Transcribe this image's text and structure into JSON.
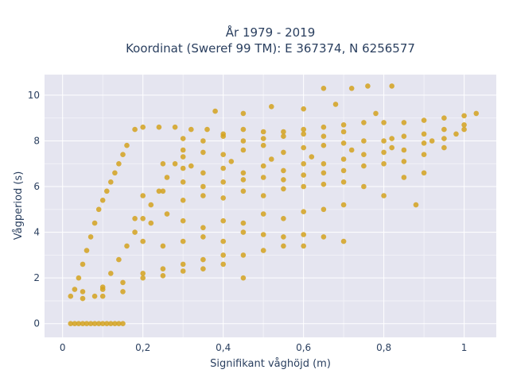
{
  "chart_data": {
    "type": "scatter",
    "title_line1": "År 1979 - 2019",
    "title_line2": "Koordinat (Sweref 99 TM): E 367374, N 6256577",
    "xlabel": "Signifikant våghöjd (m)",
    "ylabel": "Vågperiod (s)",
    "xlim": [
      -0.045,
      1.08
    ],
    "ylim": [
      -0.6,
      10.9
    ],
    "x_ticks": [
      0,
      0.2,
      0.4,
      0.6,
      0.8,
      1
    ],
    "x_tick_labels": [
      "0",
      "0,2",
      "0,4",
      "0,6",
      "0,8",
      "1"
    ],
    "y_ticks": [
      0,
      2,
      4,
      6,
      8,
      10
    ],
    "y_tick_labels": [
      "0",
      "2",
      "4",
      "6",
      "8",
      "10"
    ],
    "grid": true,
    "legend": "none",
    "marker_color": "#D4A21F",
    "background_color": "#E5E5F0",
    "points": [
      [
        0.02,
        0
      ],
      [
        0.03,
        0
      ],
      [
        0.04,
        0
      ],
      [
        0.05,
        0
      ],
      [
        0.06,
        0
      ],
      [
        0.07,
        0
      ],
      [
        0.08,
        0
      ],
      [
        0.09,
        0
      ],
      [
        0.1,
        0
      ],
      [
        0.11,
        0
      ],
      [
        0.12,
        0
      ],
      [
        0.13,
        0
      ],
      [
        0.14,
        0
      ],
      [
        0.15,
        0
      ],
      [
        0.02,
        1.2
      ],
      [
        0.03,
        1.5
      ],
      [
        0.04,
        2.0
      ],
      [
        0.05,
        2.6
      ],
      [
        0.06,
        3.2
      ],
      [
        0.07,
        3.8
      ],
      [
        0.08,
        4.4
      ],
      [
        0.09,
        5.0
      ],
      [
        0.1,
        5.4
      ],
      [
        0.11,
        5.8
      ],
      [
        0.12,
        6.2
      ],
      [
        0.13,
        6.6
      ],
      [
        0.14,
        7.0
      ],
      [
        0.15,
        7.4
      ],
      [
        0.16,
        7.8
      ],
      [
        0.05,
        1.1
      ],
      [
        0.08,
        1.2
      ],
      [
        0.1,
        1.5
      ],
      [
        0.12,
        2.2
      ],
      [
        0.14,
        2.8
      ],
      [
        0.16,
        3.4
      ],
      [
        0.18,
        4.0
      ],
      [
        0.2,
        4.6
      ],
      [
        0.22,
        5.2
      ],
      [
        0.24,
        5.8
      ],
      [
        0.26,
        6.4
      ],
      [
        0.28,
        7.0
      ],
      [
        0.3,
        7.6
      ],
      [
        0.18,
        8.5
      ],
      [
        0.2,
        8.6
      ],
      [
        0.24,
        8.6
      ],
      [
        0.28,
        8.6
      ],
      [
        0.32,
        8.5
      ],
      [
        0.36,
        8.5
      ],
      [
        0.4,
        8.3
      ],
      [
        0.45,
        8.5
      ],
      [
        0.5,
        8.4
      ],
      [
        0.55,
        8.4
      ],
      [
        0.6,
        8.5
      ],
      [
        0.65,
        8.6
      ],
      [
        0.7,
        8.7
      ],
      [
        0.75,
        8.8
      ],
      [
        0.8,
        8.8
      ],
      [
        0.85,
        8.8
      ],
      [
        0.9,
        8.9
      ],
      [
        0.95,
        9.0
      ],
      [
        1.0,
        9.1
      ],
      [
        1.03,
        9.2
      ],
      [
        0.38,
        9.3
      ],
      [
        0.45,
        9.2
      ],
      [
        0.52,
        9.5
      ],
      [
        0.6,
        9.4
      ],
      [
        0.65,
        10.3
      ],
      [
        0.72,
        10.3
      ],
      [
        0.76,
        10.4
      ],
      [
        0.82,
        10.4
      ],
      [
        0.68,
        9.6
      ],
      [
        0.78,
        9.2
      ],
      [
        0.25,
        7.0
      ],
      [
        0.3,
        6.8
      ],
      [
        0.35,
        6.6
      ],
      [
        0.4,
        6.8
      ],
      [
        0.45,
        6.6
      ],
      [
        0.5,
        6.9
      ],
      [
        0.55,
        6.7
      ],
      [
        0.6,
        7.0
      ],
      [
        0.65,
        7.0
      ],
      [
        0.7,
        7.2
      ],
      [
        0.75,
        7.4
      ],
      [
        0.8,
        7.5
      ],
      [
        0.85,
        7.6
      ],
      [
        0.9,
        7.9
      ],
      [
        0.95,
        8.1
      ],
      [
        1.0,
        8.5
      ],
      [
        0.2,
        5.6
      ],
      [
        0.25,
        5.8
      ],
      [
        0.3,
        5.4
      ],
      [
        0.35,
        5.6
      ],
      [
        0.4,
        5.5
      ],
      [
        0.45,
        5.8
      ],
      [
        0.5,
        5.6
      ],
      [
        0.55,
        5.9
      ],
      [
        0.6,
        6.0
      ],
      [
        0.65,
        6.1
      ],
      [
        0.7,
        6.2
      ],
      [
        0.75,
        6.0
      ],
      [
        0.8,
        5.6
      ],
      [
        0.85,
        6.4
      ],
      [
        0.88,
        5.2
      ],
      [
        0.9,
        6.6
      ],
      [
        0.18,
        4.6
      ],
      [
        0.22,
        4.4
      ],
      [
        0.26,
        4.8
      ],
      [
        0.3,
        4.5
      ],
      [
        0.35,
        4.2
      ],
      [
        0.4,
        4.5
      ],
      [
        0.45,
        4.4
      ],
      [
        0.5,
        4.8
      ],
      [
        0.55,
        4.6
      ],
      [
        0.6,
        4.9
      ],
      [
        0.65,
        5.0
      ],
      [
        0.7,
        5.2
      ],
      [
        0.2,
        3.6
      ],
      [
        0.25,
        3.4
      ],
      [
        0.3,
        3.6
      ],
      [
        0.35,
        3.8
      ],
      [
        0.4,
        3.6
      ],
      [
        0.45,
        4.0
      ],
      [
        0.5,
        3.9
      ],
      [
        0.55,
        3.8
      ],
      [
        0.6,
        3.9
      ],
      [
        0.65,
        3.8
      ],
      [
        0.7,
        3.6
      ],
      [
        0.2,
        2.2
      ],
      [
        0.25,
        2.4
      ],
      [
        0.3,
        2.6
      ],
      [
        0.35,
        2.8
      ],
      [
        0.4,
        3.0
      ],
      [
        0.45,
        3.0
      ],
      [
        0.5,
        3.2
      ],
      [
        0.55,
        3.4
      ],
      [
        0.6,
        3.4
      ],
      [
        0.45,
        2.0
      ],
      [
        0.1,
        1.6
      ],
      [
        0.15,
        1.8
      ],
      [
        0.2,
        2.0
      ],
      [
        0.25,
        2.1
      ],
      [
        0.3,
        2.3
      ],
      [
        0.35,
        2.4
      ],
      [
        0.4,
        2.6
      ],
      [
        0.05,
        1.4
      ],
      [
        0.1,
        1.2
      ],
      [
        0.15,
        1.4
      ],
      [
        0.3,
        6.2
      ],
      [
        0.35,
        6.0
      ],
      [
        0.4,
        6.2
      ],
      [
        0.45,
        6.3
      ],
      [
        0.5,
        6.4
      ],
      [
        0.55,
        6.3
      ],
      [
        0.6,
        6.5
      ],
      [
        0.65,
        6.6
      ],
      [
        0.7,
        6.7
      ],
      [
        0.75,
        6.9
      ],
      [
        0.8,
        7.0
      ],
      [
        0.85,
        7.1
      ],
      [
        0.9,
        7.4
      ],
      [
        0.95,
        7.7
      ],
      [
        0.3,
        7.3
      ],
      [
        0.35,
        7.5
      ],
      [
        0.4,
        7.4
      ],
      [
        0.45,
        7.6
      ],
      [
        0.5,
        7.8
      ],
      [
        0.55,
        7.5
      ],
      [
        0.6,
        7.7
      ],
      [
        0.65,
        7.8
      ],
      [
        0.7,
        7.9
      ],
      [
        0.75,
        8.0
      ],
      [
        0.8,
        8.0
      ],
      [
        0.85,
        8.2
      ],
      [
        0.9,
        8.3
      ],
      [
        0.95,
        8.5
      ],
      [
        1.0,
        8.7
      ],
      [
        0.3,
        8.1
      ],
      [
        0.35,
        8.0
      ],
      [
        0.4,
        8.2
      ],
      [
        0.45,
        8.0
      ],
      [
        0.5,
        8.1
      ],
      [
        0.55,
        8.2
      ],
      [
        0.6,
        8.3
      ],
      [
        0.65,
        8.2
      ],
      [
        0.7,
        8.4
      ],
      [
        0.82,
        8.1
      ],
      [
        0.32,
        6.9
      ],
      [
        0.42,
        7.1
      ],
      [
        0.52,
        7.2
      ],
      [
        0.62,
        7.3
      ],
      [
        0.72,
        7.6
      ],
      [
        0.82,
        7.7
      ],
      [
        0.92,
        8.0
      ],
      [
        0.98,
        8.3
      ]
    ]
  }
}
